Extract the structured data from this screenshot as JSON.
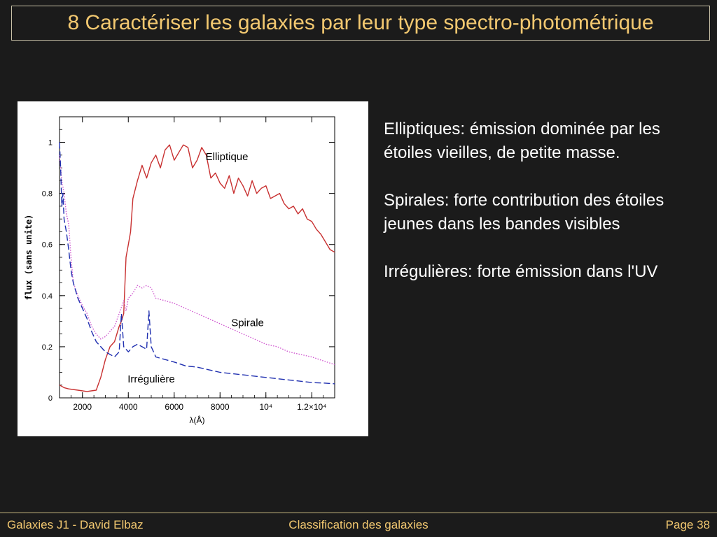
{
  "title": "8 Caractériser les galaxies par leur type spectro-photométrique",
  "bullets": [
    "Elliptiques: émission dominée par les étoiles vieilles, de petite masse.",
    "Spirales: forte contribution des étoiles jeunes dans les bandes visibles",
    "Irrégulières: forte émission dans l'UV"
  ],
  "footer": {
    "left": "Galaxies J1 - David Elbaz",
    "center": "Classification des galaxies",
    "right": "Page 38"
  },
  "chart_data": {
    "type": "line",
    "xlabel": "λ(Å)",
    "ylabel": "flux (sans unite)",
    "xlim": [
      1000,
      13000
    ],
    "ylim": [
      0,
      1.1
    ],
    "x_ticks": [
      {
        "value": 2000,
        "label": "2000"
      },
      {
        "value": 4000,
        "label": "4000"
      },
      {
        "value": 6000,
        "label": "6000"
      },
      {
        "value": 8000,
        "label": "8000"
      },
      {
        "value": 10000,
        "label": "10⁴"
      },
      {
        "value": 12000,
        "label": "1.2×10⁴"
      }
    ],
    "y_ticks": [
      {
        "value": 0,
        "label": "0"
      },
      {
        "value": 0.2,
        "label": "0.2"
      },
      {
        "value": 0.4,
        "label": "0.4"
      },
      {
        "value": 0.6,
        "label": "0.6"
      },
      {
        "value": 0.8,
        "label": "0.8"
      },
      {
        "value": 1,
        "label": "1"
      }
    ],
    "series": [
      {
        "name": "Elliptique",
        "color": "#c83030",
        "style": "solid",
        "x": [
          1000,
          1200,
          1400,
          1800,
          2200,
          2600,
          2800,
          3000,
          3200,
          3400,
          3600,
          3700,
          3800,
          3900,
          4000,
          4100,
          4200,
          4400,
          4600,
          4800,
          5000,
          5200,
          5400,
          5600,
          5800,
          6000,
          6200,
          6400,
          6600,
          6800,
          7000,
          7200,
          7400,
          7600,
          7800,
          8000,
          8200,
          8400,
          8600,
          8800,
          9000,
          9200,
          9400,
          9600,
          9800,
          10000,
          10200,
          10400,
          10600,
          10800,
          11000,
          11200,
          11400,
          11600,
          11800,
          12000,
          12200,
          12400,
          12600,
          12800,
          13000
        ],
        "y": [
          0.05,
          0.04,
          0.035,
          0.03,
          0.025,
          0.03,
          0.08,
          0.15,
          0.2,
          0.22,
          0.28,
          0.3,
          0.33,
          0.55,
          0.6,
          0.65,
          0.78,
          0.85,
          0.91,
          0.86,
          0.92,
          0.95,
          0.9,
          0.97,
          0.99,
          0.93,
          0.96,
          0.99,
          0.98,
          0.9,
          0.93,
          0.98,
          0.95,
          0.86,
          0.88,
          0.84,
          0.82,
          0.87,
          0.8,
          0.86,
          0.83,
          0.79,
          0.85,
          0.8,
          0.82,
          0.83,
          0.78,
          0.79,
          0.8,
          0.76,
          0.74,
          0.75,
          0.72,
          0.74,
          0.7,
          0.69,
          0.66,
          0.64,
          0.61,
          0.58,
          0.57
        ]
      },
      {
        "name": "Spirale",
        "color": "#d058d0",
        "style": "dotted",
        "x": [
          1000,
          1100,
          1200,
          1300,
          1400,
          1500,
          1600,
          1800,
          2000,
          2200,
          2400,
          2600,
          2800,
          3000,
          3200,
          3400,
          3600,
          3800,
          3900,
          4000,
          4200,
          4400,
          4600,
          4800,
          5000,
          5200,
          5600,
          6000,
          6500,
          7000,
          7500,
          8000,
          8500,
          9000,
          9500,
          10000,
          10500,
          11000,
          11500,
          12000,
          12500,
          13000
        ],
        "y": [
          0.95,
          0.85,
          0.8,
          0.72,
          0.68,
          0.55,
          0.45,
          0.4,
          0.36,
          0.33,
          0.28,
          0.25,
          0.23,
          0.24,
          0.26,
          0.28,
          0.33,
          0.38,
          0.34,
          0.39,
          0.41,
          0.44,
          0.43,
          0.44,
          0.43,
          0.39,
          0.38,
          0.37,
          0.35,
          0.33,
          0.31,
          0.29,
          0.27,
          0.25,
          0.23,
          0.21,
          0.2,
          0.18,
          0.17,
          0.16,
          0.145,
          0.13
        ]
      },
      {
        "name": "Irrégulière",
        "color": "#2030b0",
        "style": "dashed",
        "x": [
          1000,
          1050,
          1100,
          1150,
          1200,
          1300,
          1400,
          1500,
          1600,
          1800,
          2000,
          2200,
          2400,
          2600,
          2800,
          3000,
          3200,
          3400,
          3600,
          3700,
          3800,
          4000,
          4200,
          4400,
          4600,
          4800,
          4900,
          5000,
          5100,
          5200,
          5600,
          6000,
          6500,
          7000,
          7500,
          8000,
          8500,
          9000,
          9500,
          10000,
          10500,
          11000,
          11500,
          12000,
          12500,
          13000
        ],
        "y": [
          1.0,
          0.9,
          0.75,
          0.8,
          0.7,
          0.65,
          0.58,
          0.5,
          0.45,
          0.39,
          0.35,
          0.31,
          0.26,
          0.22,
          0.2,
          0.18,
          0.17,
          0.16,
          0.18,
          0.33,
          0.2,
          0.18,
          0.2,
          0.21,
          0.2,
          0.19,
          0.34,
          0.2,
          0.18,
          0.16,
          0.15,
          0.14,
          0.125,
          0.12,
          0.11,
          0.1,
          0.095,
          0.09,
          0.085,
          0.08,
          0.075,
          0.07,
          0.065,
          0.06,
          0.058,
          0.055
        ]
      }
    ],
    "annotations": [
      {
        "text": "Elliptique",
        "x": 8300,
        "y": 0.93
      },
      {
        "text": "Spirale",
        "x": 9200,
        "y": 0.28
      },
      {
        "text": "Irrégulière",
        "x": 5000,
        "y": 0.06
      }
    ]
  }
}
